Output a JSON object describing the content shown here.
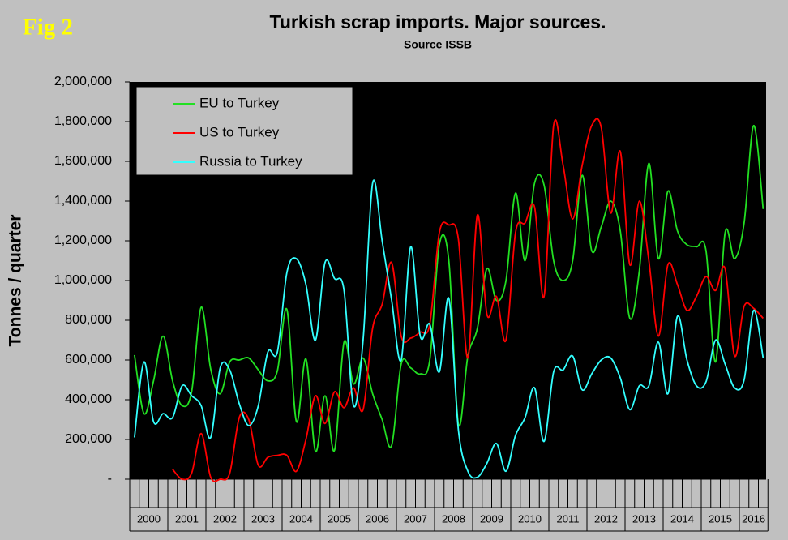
{
  "chart_data": {
    "type": "line",
    "title": "Turkish scrap imports. Major sources.",
    "subtitle": "Source ISSB",
    "figure_label": "Fig 2",
    "y_label": "Tonnes / quarter",
    "categories": [
      null,
      null,
      null,
      null,
      null,
      null,
      null,
      null,
      null,
      null,
      null,
      null,
      null,
      null,
      null,
      null,
      null,
      null,
      null,
      null,
      null,
      null,
      null,
      null,
      null,
      null,
      null,
      null,
      null,
      null,
      null,
      null,
      null,
      null,
      null,
      null,
      null,
      null,
      null,
      null,
      null,
      null,
      null,
      null,
      null,
      null,
      null,
      null,
      null,
      null,
      null,
      null,
      null,
      null,
      null,
      null,
      null,
      null,
      null,
      null,
      null,
      null,
      null,
      null,
      null,
      null,
      null
    ],
    "year_labels": [
      "2000",
      "2001",
      "2002",
      "2003",
      "2004",
      "2005",
      "2006",
      "2007",
      "2008",
      "2009",
      "2010",
      "2011",
      "2012",
      "2013",
      "2014",
      "2015",
      "2016"
    ],
    "series": [
      {
        "name": "EU to Turkey",
        "color": "#22e022",
        "values": [
          625000,
          330000,
          495000,
          720000,
          495000,
          370000,
          440000,
          865000,
          555000,
          430000,
          590000,
          600000,
          610000,
          550000,
          495000,
          545000,
          855000,
          290000,
          605000,
          140000,
          420000,
          145000,
          690000,
          480000,
          610000,
          430000,
          300000,
          170000,
          580000,
          560000,
          530000,
          600000,
          1180000,
          1100000,
          280000,
          620000,
          760000,
          1060000,
          900000,
          1000000,
          1440000,
          1100000,
          1490000,
          1480000,
          1100000,
          1000000,
          1100000,
          1530000,
          1150000,
          1270000,
          1400000,
          1250000,
          810000,
          1050000,
          1590000,
          1110000,
          1450000,
          1250000,
          1180000,
          1170000,
          1150000,
          590000,
          1240000,
          1110000,
          1290000,
          1780000,
          1360000
        ]
      },
      {
        "name": "US to Turkey",
        "color": "#ff0000",
        "values": [
          null,
          null,
          null,
          null,
          50000,
          0,
          30000,
          230000,
          10000,
          0,
          30000,
          310000,
          300000,
          70000,
          110000,
          120000,
          120000,
          40000,
          200000,
          420000,
          280000,
          440000,
          360000,
          460000,
          350000,
          760000,
          880000,
          1090000,
          720000,
          710000,
          740000,
          780000,
          1240000,
          1280000,
          1210000,
          610000,
          1330000,
          830000,
          920000,
          700000,
          1240000,
          1290000,
          1370000,
          920000,
          1780000,
          1580000,
          1310000,
          1580000,
          1780000,
          1770000,
          1340000,
          1650000,
          1080000,
          1400000,
          1100000,
          720000,
          1080000,
          980000,
          850000,
          920000,
          1020000,
          950000,
          1060000,
          620000,
          870000,
          860000,
          810000
        ]
      },
      {
        "name": "Russia to Turkey",
        "color": "#33ffff",
        "values": [
          210000,
          590000,
          290000,
          330000,
          310000,
          470000,
          420000,
          370000,
          210000,
          560000,
          550000,
          380000,
          270000,
          370000,
          640000,
          640000,
          1040000,
          1110000,
          980000,
          700000,
          1090000,
          1010000,
          950000,
          370000,
          700000,
          1490000,
          1200000,
          900000,
          600000,
          1170000,
          720000,
          780000,
          540000,
          910000,
          250000,
          40000,
          10000,
          80000,
          180000,
          40000,
          220000,
          310000,
          460000,
          190000,
          540000,
          550000,
          620000,
          450000,
          530000,
          600000,
          610000,
          510000,
          350000,
          470000,
          470000,
          690000,
          430000,
          820000,
          600000,
          470000,
          490000,
          700000,
          580000,
          460000,
          500000,
          850000,
          610000
        ]
      }
    ],
    "ylim": [
      0,
      2000000
    ],
    "yticks": [
      {
        "value": 0,
        "label": "-"
      },
      {
        "value": 200000,
        "label": "200,000"
      },
      {
        "value": 400000,
        "label": "400,000"
      },
      {
        "value": 600000,
        "label": "600,000"
      },
      {
        "value": 800000,
        "label": "800,000"
      },
      {
        "value": 1000000,
        "label": "1,000,000"
      },
      {
        "value": 1200000,
        "label": "1,200,000"
      },
      {
        "value": 1400000,
        "label": "1,400,000"
      },
      {
        "value": 1600000,
        "label": "1,600,000"
      },
      {
        "value": 1800000,
        "label": "1,800,000"
      },
      {
        "value": 2000000,
        "label": "2,000,000"
      }
    ],
    "legend": "upper left",
    "background": "#000000"
  }
}
